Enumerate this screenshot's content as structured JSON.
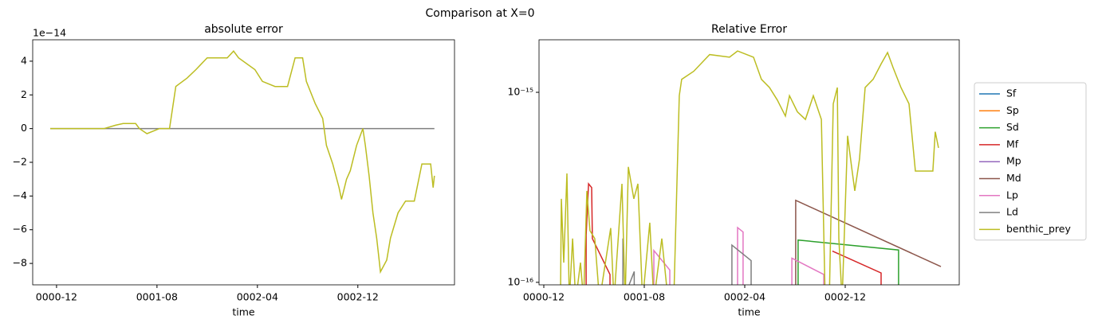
{
  "title": "Comparison at X=0",
  "chart_data": [
    {
      "type": "line",
      "title": "absolute error",
      "x_label": "time",
      "y_offset_label": "1e−14",
      "xlim": [
        -1.9,
        31.7
      ],
      "ylim": [
        -9.27,
        5.27
      ],
      "xticks": [
        {
          "value": 0,
          "label": "0000-12"
        },
        {
          "value": 8,
          "label": "0001-08"
        },
        {
          "value": 16,
          "label": "0002-04"
        },
        {
          "value": 24,
          "label": "0002-12"
        }
      ],
      "yticks": [
        {
          "value": -8,
          "label": "−8"
        },
        {
          "value": -6,
          "label": "−6"
        },
        {
          "value": -4,
          "label": "−4"
        },
        {
          "value": -2,
          "label": "−2"
        },
        0,
        2,
        4
      ],
      "series": [
        {
          "color": "#7f7f7f",
          "x": [
            -0.5,
            30.1
          ],
          "values": [
            0,
            0
          ]
        },
        {
          "color": "#bcbd22",
          "x": [
            -0.5,
            3.8,
            4.7,
            5.3,
            6.3,
            6.6,
            7.2,
            8.2,
            9.0,
            9.5,
            10.4,
            11.1,
            12.0,
            13.6,
            14.1,
            14.5,
            15.8,
            16.4,
            17.4,
            18.4,
            19.0,
            19.6,
            19.9,
            20.6,
            21.2,
            21.5,
            22.0,
            22.5,
            22.7,
            23.1,
            23.4,
            23.9,
            24.4,
            24.6,
            24.9,
            25.2,
            25.5,
            25.7,
            25.8,
            26.3,
            26.6,
            27.2,
            27.8,
            28.5,
            29.1,
            29.8,
            30.0,
            30.1
          ],
          "values": [
            0,
            0,
            0.2,
            0.3,
            0.3,
            0,
            -0.3,
            0,
            0,
            2.5,
            3,
            3.5,
            4.2,
            4.2,
            4.6,
            4.2,
            3.5,
            2.8,
            2.5,
            2.5,
            4.2,
            4.2,
            2.8,
            1.5,
            0.6,
            -1,
            -2.1,
            -3.5,
            -4.2,
            -3,
            -2.5,
            -1,
            0,
            -1,
            -2.8,
            -5,
            -6.5,
            -7.8,
            -8.5,
            -7.8,
            -6.5,
            -5,
            -4.3,
            -4.3,
            -2.1,
            -2.1,
            -3.5,
            -2.8
          ]
        }
      ]
    },
    {
      "type": "line",
      "title": "Relative Error",
      "x_label": "time",
      "yscale": "log",
      "legend": "right",
      "xlim": [
        -0.38,
        33.08
      ],
      "ylim": [
        9.7e-17,
        1.89e-15
      ],
      "xticks": [
        {
          "value": 0,
          "label": "0000-12"
        },
        {
          "value": 8,
          "label": "0001-08"
        },
        {
          "value": 16,
          "label": "0002-04"
        },
        {
          "value": 24,
          "label": "0002-12"
        }
      ],
      "yticks": [
        {
          "value": 1e-16,
          "label": "10⁻¹⁶"
        },
        {
          "value": 1e-15,
          "label": "10⁻¹⁵"
        }
      ],
      "series": [
        {
          "name": "Sf",
          "color": "#1f77b4",
          "x": [],
          "values": []
        },
        {
          "name": "Sp",
          "color": "#ff7f0e",
          "x": [],
          "values": []
        },
        {
          "name": "Sd",
          "color": "#2ca02c",
          "x": [
            20.25,
            20.25,
            28.25,
            28.25
          ],
          "values": [
            8e-17,
            1.67e-16,
            1.48e-16,
            8e-17
          ]
        },
        {
          "name": "Mf",
          "color": "#d62728",
          "x": [
            3.37,
            3.37,
            3.56,
            3.81,
            3.87,
            5.27,
            5.27,
            5.27,
            22.98,
            26.86,
            26.86
          ],
          "values": [
            8e-17,
            1.77e-16,
            3.3e-16,
            3.15e-16,
            1.7e-16,
            1.1e-16,
            8e-17,
            null,
            1.46e-16,
            1.12e-16,
            8e-17
          ]
        },
        {
          "name": "Mp",
          "color": "#9467bd",
          "x": [],
          "values": []
        },
        {
          "name": "Md",
          "color": "#8c564b",
          "x": [
            20.06,
            20.06,
            31.62
          ],
          "values": [
            8e-17,
            2.7e-16,
            1.21e-16
          ]
        },
        {
          "name": "Lp",
          "color": "#e377c2",
          "x": [
            8.76,
            8.76,
            10.03,
            10.03,
            10.03,
            15.43,
            15.43,
            15.87,
            15.87,
            15.87,
            19.75,
            19.75,
            22.29,
            22.29
          ],
          "values": [
            8e-17,
            1.47e-16,
            1.16e-16,
            8e-17,
            null,
            8e-17,
            1.94e-16,
            1.84e-16,
            8e-17,
            null,
            8e-17,
            1.34e-16,
            1.1e-16,
            8e-17
          ]
        },
        {
          "name": "Ld",
          "color": "#7f7f7f",
          "x": [
            6.3,
            6.3,
            6.3,
            6.3,
            7.2,
            7.2,
            7.2,
            14.98,
            14.98,
            16.51,
            16.51
          ],
          "values": [
            8e-17,
            1.7e-16,
            null,
            8e-17,
            1.14e-16,
            8e-17,
            null,
            8e-17,
            1.57e-16,
            1.3e-16,
            8e-17
          ]
        },
        {
          "name": "benthic_prey",
          "color": "#bcbd22",
          "x": [
            1.33,
            1.4,
            1.59,
            1.84,
            2.03,
            2.29,
            2.54,
            2.92,
            3.17,
            3.43,
            3.68,
            4.06,
            4.44,
            5.33,
            5.59,
            6.22,
            6.48,
            6.73,
            7.17,
            7.49,
            7.87,
            8.44,
            8.76,
            9.4,
            9.9,
            10.35,
            10.79,
            10.98,
            11.94,
            13.21,
            14.79,
            15.43,
            16.7,
            17.33,
            17.97,
            18.6,
            19.24,
            19.56,
            20.19,
            20.83,
            21.46,
            22.1,
            22.41,
            22.73,
            23.05,
            23.37,
            23.49,
            23.75,
            24.19,
            24.51,
            24.76,
            25.14,
            25.59,
            26.22,
            26.86,
            27.37,
            27.81,
            28.44,
            29.08,
            29.59,
            30.35,
            30.98,
            31.17,
            31.43
          ],
          "values": [
            8e-17,
            2.75e-16,
            1.27e-16,
            3.74e-16,
            8e-17,
            1.7e-16,
            8e-17,
            1.27e-16,
            8e-17,
            3.03e-16,
            1.87e-16,
            1.7e-16,
            8e-17,
            1.93e-16,
            8e-17,
            3.3e-16,
            8e-17,
            4.05e-16,
            2.75e-16,
            3.3e-16,
            8e-17,
            2.06e-16,
            8e-17,
            1.7e-16,
            8e-17,
            8e-17,
            9.6e-16,
            1.17e-15,
            1.29e-15,
            1.58e-15,
            1.53e-15,
            1.65e-15,
            1.53e-15,
            1.17e-15,
            1.06e-15,
            9.1e-16,
            7.5e-16,
            9.6e-16,
            7.9e-16,
            7.2e-16,
            9.6e-16,
            7.2e-16,
            8e-17,
            8e-17,
            8.7e-16,
            1.06e-15,
            1.7e-16,
            8e-17,
            5.9e-16,
            4.05e-16,
            3.03e-16,
            4.45e-16,
            1.06e-15,
            1.17e-15,
            1.41e-15,
            1.62e-15,
            1.35e-15,
            1.06e-15,
            8.7e-16,
            3.85e-16,
            3.85e-16,
            3.85e-16,
            6.2e-16,
            5.1e-16
          ]
        }
      ]
    }
  ]
}
